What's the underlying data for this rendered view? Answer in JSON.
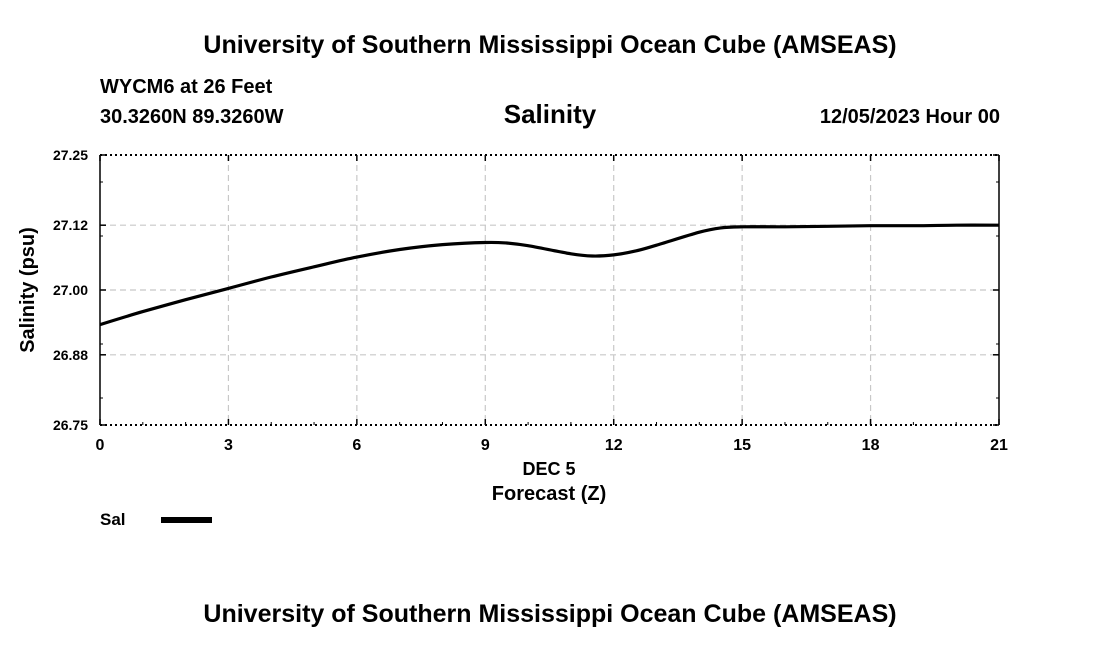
{
  "header": {
    "title": "University of Southern Mississippi Ocean Cube (AMSEAS)",
    "station": "WYCM6 at 26 Feet",
    "coords": "30.3260N  89.3260W",
    "chart_title": "Salinity",
    "datetime": "12/05/2023 Hour 00"
  },
  "footer": {
    "title": "University of Southern Mississippi Ocean Cube (AMSEAS)"
  },
  "colors": {
    "line": "#000000",
    "grid": "#c8c8c8"
  },
  "chart_data": {
    "type": "line",
    "title": "Salinity",
    "xlabel": "Forecast (Z)",
    "xsublabel": "DEC 5",
    "ylabel": "Salinity (psu)",
    "xlim": [
      0,
      21
    ],
    "ylim": [
      26.75,
      27.25
    ],
    "xticks": [
      0,
      3,
      6,
      9,
      12,
      15,
      18,
      21
    ],
    "yticks": [
      26.75,
      26.88,
      27.0,
      27.12,
      27.25
    ],
    "ytick_labels": [
      "26.75",
      "26.88",
      "27.00",
      "27.12",
      "27.25"
    ],
    "grid": true,
    "legend": [
      {
        "label": "Sal",
        "position": "bottom-left"
      }
    ],
    "series": [
      {
        "name": "Sal",
        "x": [
          0,
          1,
          2,
          3,
          4,
          5,
          6,
          7,
          8,
          9,
          9.5,
          10,
          11,
          11.5,
          12,
          12.5,
          13,
          14,
          14.5,
          15,
          16,
          17,
          18,
          19,
          20,
          21
        ],
        "y": [
          26.936,
          26.96,
          26.982,
          27.003,
          27.024,
          27.043,
          27.061,
          27.075,
          27.084,
          27.088,
          27.087,
          27.082,
          27.067,
          27.063,
          27.065,
          27.072,
          27.083,
          27.107,
          27.115,
          27.117,
          27.117,
          27.118,
          27.119,
          27.119,
          27.12,
          27.12
        ]
      }
    ]
  }
}
